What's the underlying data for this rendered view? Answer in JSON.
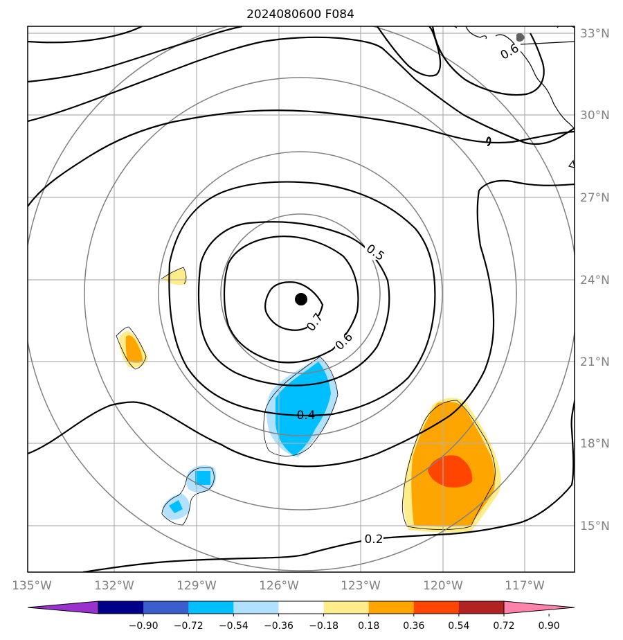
{
  "title": "2024080600 F084",
  "map": {
    "lon_ticks": [
      "135°W",
      "132°W",
      "129°W",
      "126°W",
      "123°W",
      "120°W",
      "117°W"
    ],
    "lat_ticks": [
      "33°N",
      "30°N",
      "27°N",
      "24°N",
      "21°N",
      "18°N",
      "15°N"
    ],
    "contour_labels": [
      "0.7",
      "0.6",
      "0.5",
      "0.4",
      "0.2",
      "0.6"
    ],
    "center_marker": "storm-center",
    "colors": {
      "contour": "#000000",
      "rings": "#808080",
      "grid": "#b0b0b0"
    }
  },
  "colorbar": {
    "tick_labels": [
      "−0.90",
      "−0.72",
      "−0.54",
      "−0.36",
      "−0.18",
      "0.18",
      "0.36",
      "0.54",
      "0.72",
      "0.90"
    ],
    "colors": [
      "#9932cc",
      "#00008b",
      "#3a5fcd",
      "#00bfff",
      "#b0e2ff",
      "#ffffff",
      "#ffec8b",
      "#ffa500",
      "#ff4500",
      "#b22222",
      "#ff82ab"
    ]
  }
}
